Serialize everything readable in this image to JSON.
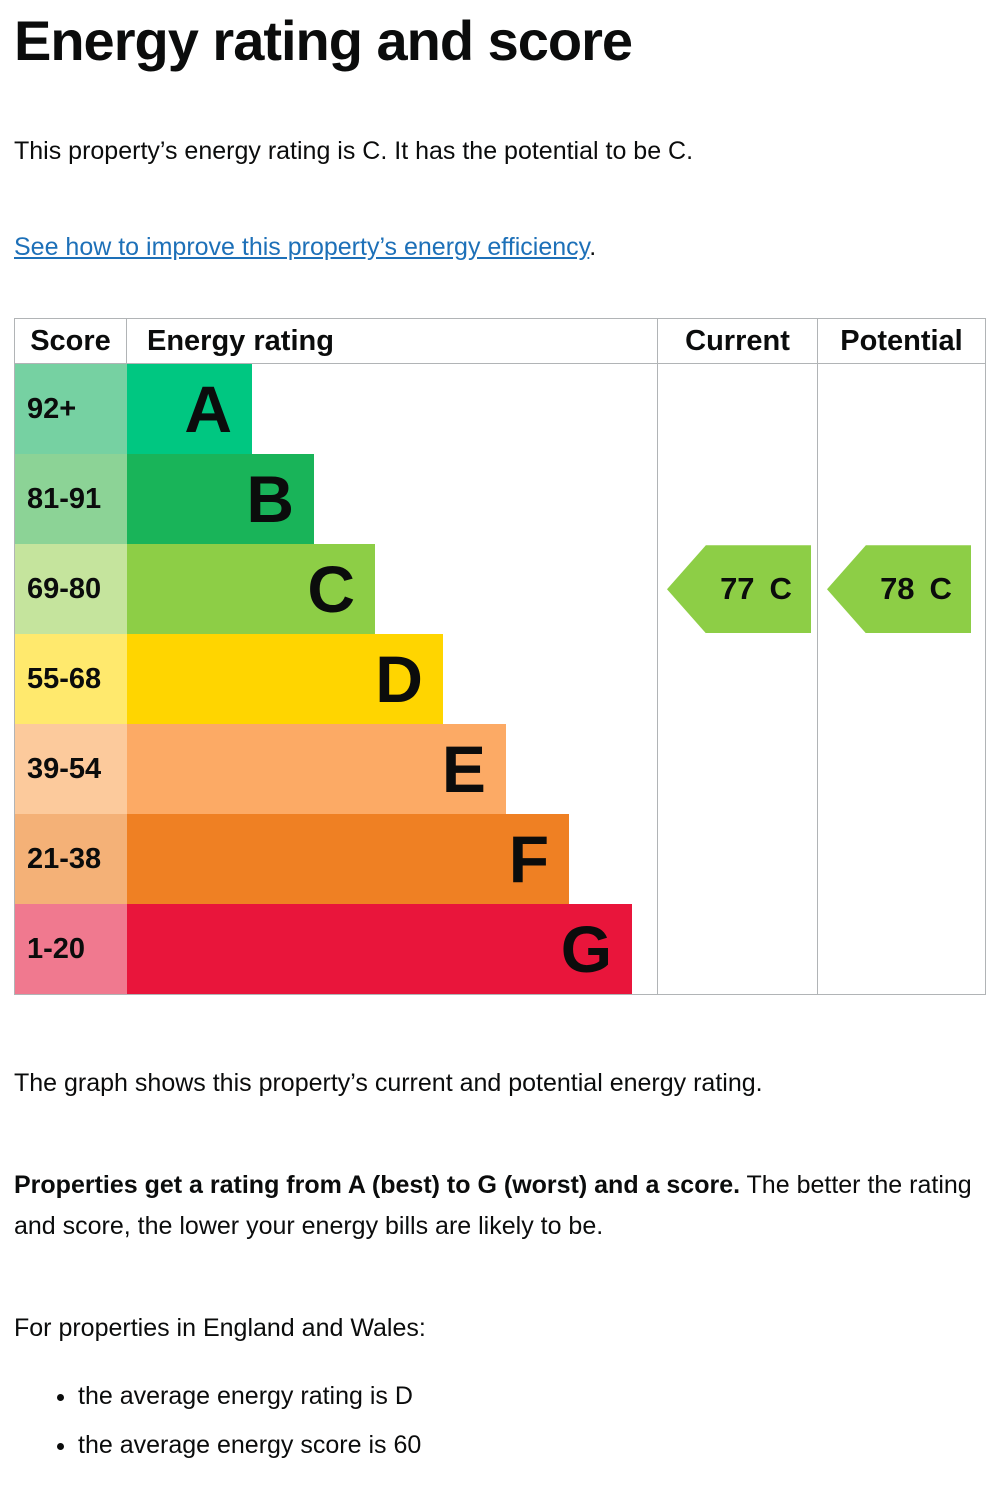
{
  "page": {
    "title": "Energy rating and score",
    "intro": "This property’s energy rating is C. It has the potential to be C.",
    "improve_link_text": "See how to improve this property’s energy efficiency",
    "improve_link_suffix": ".",
    "graph_caption": "The graph shows this property’s current and potential energy rating.",
    "explain_bold": "Properties get a rating from A (best) to G (worst) and a score.",
    "explain_rest": " The better the rating and score, the lower your energy bills are likely to be.",
    "regions_intro": "For properties in England and Wales:",
    "average_facts": [
      "the average energy rating is D",
      "the average energy score is 60"
    ]
  },
  "chart": {
    "headers": {
      "score": "Score",
      "rating": "Energy rating",
      "current": "Current",
      "potential": "Potential"
    },
    "bands": [
      {
        "score_range": "92+",
        "letter": "A",
        "bar_color": "#00c781",
        "score_bg": "#76d1a2",
        "width_pct": 23.6
      },
      {
        "score_range": "81-91",
        "letter": "B",
        "bar_color": "#19b459",
        "score_bg": "#8cd396",
        "width_pct": 35.3
      },
      {
        "score_range": "69-80",
        "letter": "C",
        "bar_color": "#8dce46",
        "score_bg": "#c5e49d",
        "width_pct": 46.8
      },
      {
        "score_range": "55-68",
        "letter": "D",
        "bar_color": "#ffd500",
        "score_bg": "#ffe96d",
        "width_pct": 59.6
      },
      {
        "score_range": "39-54",
        "letter": "E",
        "bar_color": "#fcaa65",
        "score_bg": "#fcca9c",
        "width_pct": 71.5
      },
      {
        "score_range": "21-38",
        "letter": "F",
        "bar_color": "#ef8023",
        "score_bg": "#f4b177",
        "width_pct": 83.4
      },
      {
        "score_range": "1-20",
        "letter": "G",
        "bar_color": "#e9153b",
        "score_bg": "#f0798f",
        "width_pct": 95.3
      }
    ],
    "current": {
      "value": "77",
      "letter": "C",
      "band_color": "#8dce46"
    },
    "potential": {
      "value": "78",
      "letter": "C",
      "band_color": "#8dce46"
    }
  },
  "chart_data": {
    "type": "bar",
    "title": "Energy rating and score",
    "categories": [
      "A",
      "B",
      "C",
      "D",
      "E",
      "F",
      "G"
    ],
    "score_ranges": [
      "92+",
      "81-91",
      "69-80",
      "55-68",
      "39-54",
      "21-38",
      "1-20"
    ],
    "series": [
      {
        "name": "band bar relative width (%)",
        "values": [
          23.6,
          35.3,
          46.8,
          59.6,
          71.5,
          83.4,
          95.3
        ]
      }
    ],
    "band_colors": [
      "#00c781",
      "#19b459",
      "#8dce46",
      "#ffd500",
      "#fcaa65",
      "#ef8023",
      "#e9153b"
    ],
    "current_rating": {
      "score": 77,
      "band": "C"
    },
    "potential_rating": {
      "score": 78,
      "band": "C"
    },
    "columns": [
      "Score",
      "Energy rating",
      "Current",
      "Potential"
    ],
    "legend_position": "none",
    "grid": false
  },
  "colors": {
    "text": "#0b0c0c",
    "link": "#1d70b8",
    "grid_line": "#b1b4b6"
  }
}
